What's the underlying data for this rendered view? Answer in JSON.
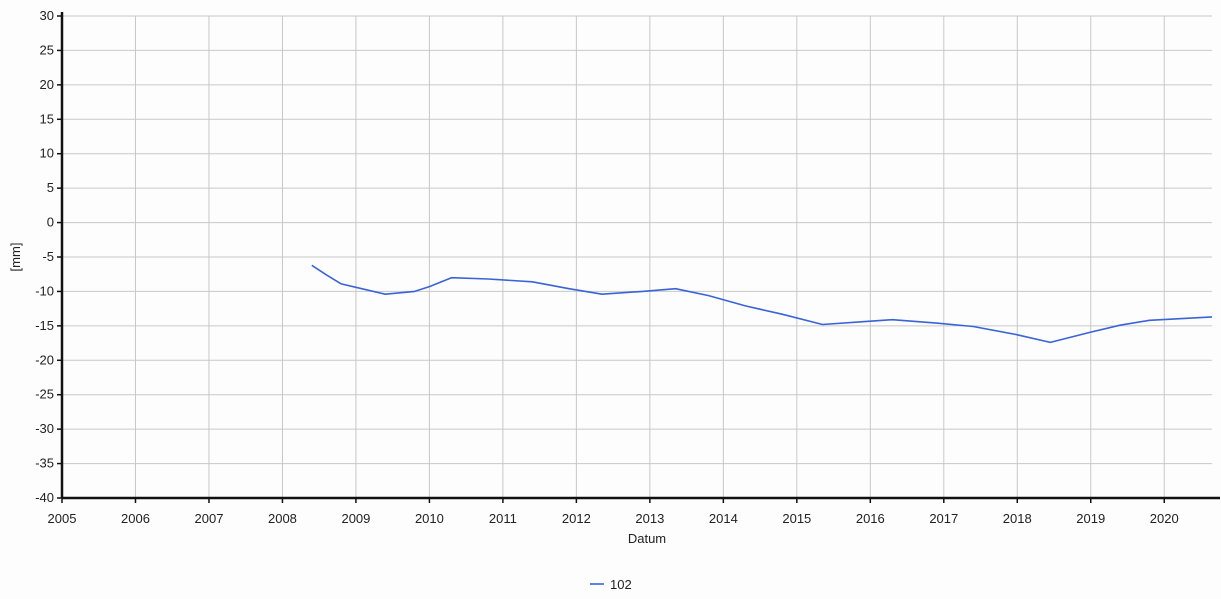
{
  "chart_data": {
    "type": "line",
    "title": "",
    "xlabel": "Datum",
    "ylabel": "[mm]",
    "x_ticks": [
      "2005",
      "2006",
      "2007",
      "2008",
      "2009",
      "2010",
      "2011",
      "2012",
      "2013",
      "2014",
      "2015",
      "2016",
      "2017",
      "2018",
      "2019",
      "2020"
    ],
    "y_ticks": [
      "30",
      "25",
      "20",
      "15",
      "10",
      "5",
      "0",
      "-5",
      "-10",
      "-15",
      "-20",
      "-25",
      "-30",
      "-35",
      "-40"
    ],
    "xlim": [
      2005,
      2020.65
    ],
    "ylim": [
      -40,
      30
    ],
    "grid": true,
    "legend_position": "bottom-center",
    "series": [
      {
        "name": "102",
        "color": "#3a63d8",
        "points": [
          {
            "x": 2008.4,
            "y": -6.2
          },
          {
            "x": 2008.6,
            "y": -7.6
          },
          {
            "x": 2008.8,
            "y": -8.9
          },
          {
            "x": 2009.0,
            "y": -9.4
          },
          {
            "x": 2009.4,
            "y": -10.4
          },
          {
            "x": 2009.8,
            "y": -10.0
          },
          {
            "x": 2010.0,
            "y": -9.3
          },
          {
            "x": 2010.3,
            "y": -8.0
          },
          {
            "x": 2010.8,
            "y": -8.2
          },
          {
            "x": 2011.4,
            "y": -8.6
          },
          {
            "x": 2011.9,
            "y": -9.6
          },
          {
            "x": 2012.35,
            "y": -10.4
          },
          {
            "x": 2012.9,
            "y": -10.0
          },
          {
            "x": 2013.35,
            "y": -9.6
          },
          {
            "x": 2013.8,
            "y": -10.6
          },
          {
            "x": 2014.3,
            "y": -12.1
          },
          {
            "x": 2014.8,
            "y": -13.3
          },
          {
            "x": 2015.35,
            "y": -14.8
          },
          {
            "x": 2015.9,
            "y": -14.4
          },
          {
            "x": 2016.3,
            "y": -14.1
          },
          {
            "x": 2016.9,
            "y": -14.6
          },
          {
            "x": 2017.4,
            "y": -15.1
          },
          {
            "x": 2018.0,
            "y": -16.3
          },
          {
            "x": 2018.45,
            "y": -17.4
          },
          {
            "x": 2019.0,
            "y": -15.9
          },
          {
            "x": 2019.4,
            "y": -14.9
          },
          {
            "x": 2019.8,
            "y": -14.2
          },
          {
            "x": 2020.65,
            "y": -13.7
          }
        ]
      }
    ]
  }
}
